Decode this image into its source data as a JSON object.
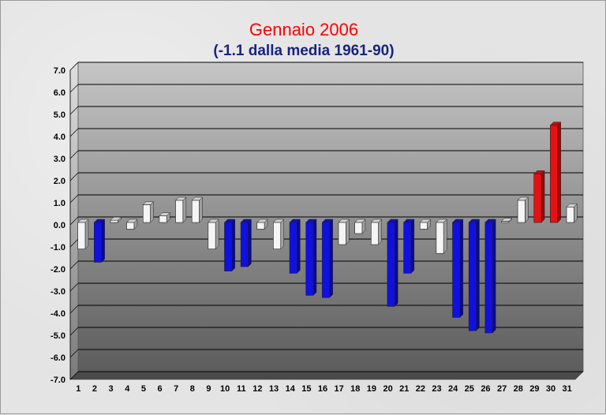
{
  "chart_data": {
    "type": "bar",
    "title": "Gennaio 2006",
    "subtitle": "(-1.1 dalla media 1961-90)",
    "xlabel": "",
    "ylabel": "",
    "ylim": [
      -7,
      7
    ],
    "yticks": [
      "7.0",
      "6.0",
      "5.0",
      "4.0",
      "3.0",
      "2.0",
      "1.0",
      "0.0",
      "-1.0",
      "-2.0",
      "-3.0",
      "-4.0",
      "-5.0",
      "-6.0",
      "-7.0"
    ],
    "categories": [
      "1",
      "2",
      "3",
      "4",
      "5",
      "6",
      "7",
      "8",
      "9",
      "10",
      "11",
      "12",
      "13",
      "14",
      "15",
      "16",
      "17",
      "18",
      "19",
      "20",
      "21",
      "22",
      "23",
      "24",
      "25",
      "26",
      "27",
      "28",
      "29",
      "30",
      "31"
    ],
    "values": [
      -1.2,
      -1.8,
      0.1,
      -0.3,
      0.8,
      0.3,
      1.0,
      1.0,
      -1.2,
      -2.2,
      -2.0,
      -0.3,
      -1.2,
      -2.3,
      -3.3,
      -3.4,
      -1.0,
      -0.5,
      -1.0,
      -3.8,
      -2.3,
      -0.3,
      -1.4,
      -4.3,
      -4.9,
      -5.0,
      0.05,
      1.0,
      2.2,
      4.4,
      0.7
    ],
    "colors": {
      "neutral": "#f5f5f5",
      "cold": "#1010e0",
      "warm": "#e81010"
    },
    "bar_color_class": [
      "neutral",
      "cold",
      "neutral",
      "neutral",
      "neutral",
      "neutral",
      "neutral",
      "neutral",
      "neutral",
      "cold",
      "cold",
      "neutral",
      "neutral",
      "cold",
      "cold",
      "cold",
      "neutral",
      "neutral",
      "neutral",
      "cold",
      "cold",
      "neutral",
      "neutral",
      "cold",
      "cold",
      "cold",
      "neutral",
      "neutral",
      "warm",
      "warm",
      "neutral"
    ],
    "grid": true,
    "legend": "none"
  }
}
